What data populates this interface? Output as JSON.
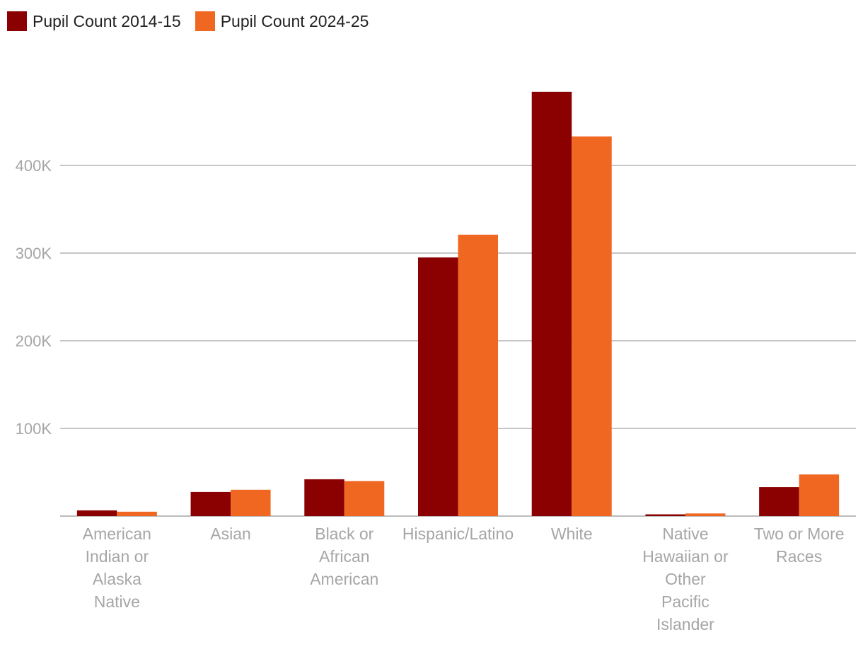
{
  "chart_data": {
    "type": "bar",
    "categories": [
      "American Indian or Alaska Native",
      "Asian",
      "Black or African American",
      "Hispanic/Latino",
      "White",
      "Native Hawaiian or Other Pacific Islander",
      "Two or More Races"
    ],
    "category_lines": [
      [
        "American",
        "Indian or",
        "Alaska",
        "Native"
      ],
      [
        "Asian"
      ],
      [
        "Black or",
        "African",
        "American"
      ],
      [
        "Hispanic/Latino"
      ],
      [
        "White"
      ],
      [
        "Native",
        "Hawaiian or",
        "Other",
        "Pacific",
        "Islander"
      ],
      [
        "Two or More",
        "Races"
      ]
    ],
    "series": [
      {
        "name": "Pupil Count 2014-15",
        "color": "#8b0000",
        "values": [
          6500,
          27500,
          42000,
          295000,
          484000,
          2000,
          33000
        ]
      },
      {
        "name": "Pupil Count 2024-25",
        "color": "#f06722",
        "values": [
          5000,
          30000,
          40000,
          321000,
          433000,
          3000,
          47500
        ]
      }
    ],
    "yticks": [
      {
        "value": 100000,
        "label": "100K"
      },
      {
        "value": 200000,
        "label": "200K"
      },
      {
        "value": 300000,
        "label": "300K"
      },
      {
        "value": 400000,
        "label": "400K"
      }
    ],
    "ylim": [
      0,
      500000
    ],
    "grid": true,
    "legend": "top-left",
    "colors": {
      "gridline": "#b3b3b3",
      "axis": "#a6a6a6",
      "text": "#a6a6a6"
    }
  }
}
